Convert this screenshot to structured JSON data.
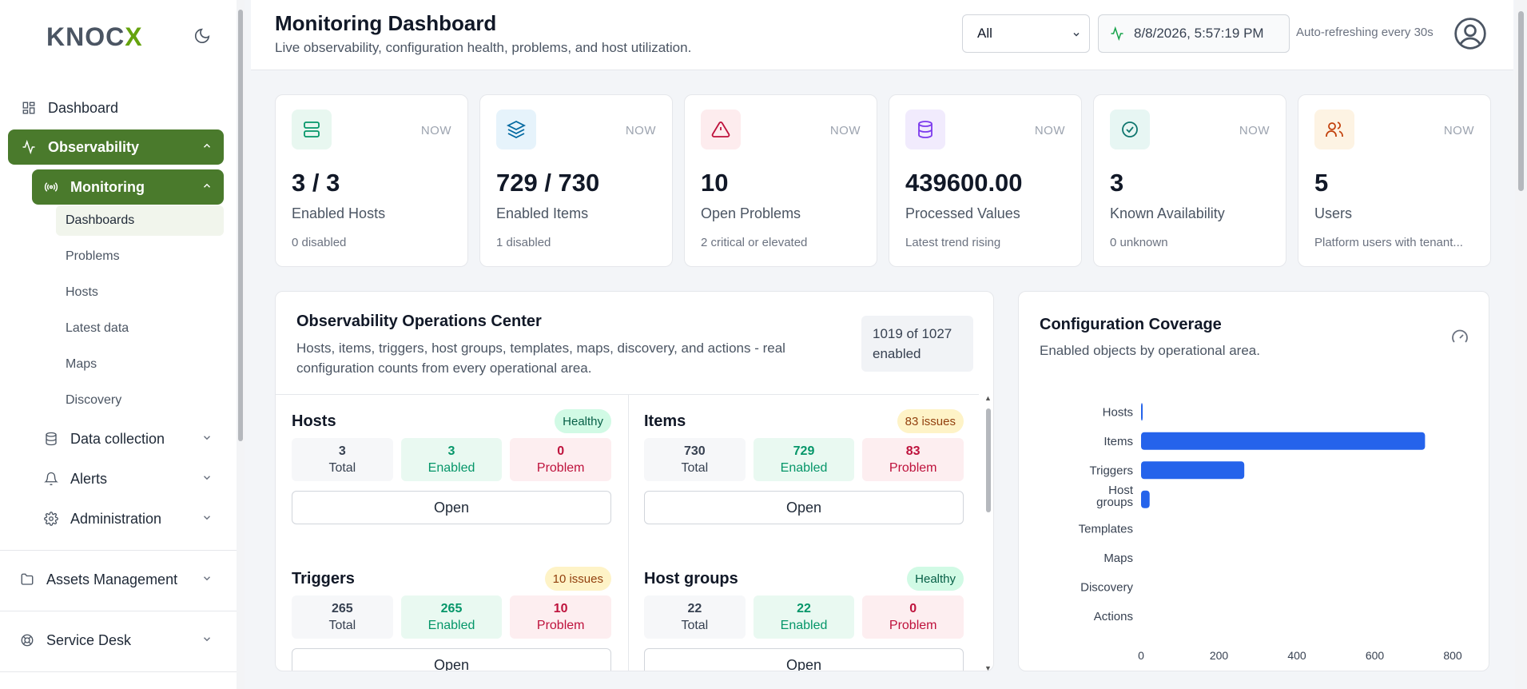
{
  "sidebar": {
    "logo_main": "KNOC",
    "logo_accent": "X",
    "theme_icon": "moon-icon",
    "items": {
      "dashboard": "Dashboard",
      "observability": "Observability",
      "monitoring": "Monitoring",
      "data_collection": "Data collection",
      "alerts": "Alerts",
      "administration": "Administration",
      "assets": "Assets Management",
      "service_desk": "Service Desk"
    },
    "monitoring_sub": [
      "Dashboards",
      "Problems",
      "Hosts",
      "Latest data",
      "Maps",
      "Discovery"
    ]
  },
  "header": {
    "title": "Monitoring Dashboard",
    "subtitle": "Live observability, configuration health, problems, and host utilization.",
    "filter_value": "All",
    "timestamp": "8/8/2026, 5:57:19 PM",
    "auto_refresh": "Auto-refreshing every 30s"
  },
  "stats": [
    {
      "icon": "server-icon",
      "badge": "NOW",
      "value": "3 / 3",
      "label": "Enabled Hosts",
      "note": "0 disabled",
      "color": "#059669",
      "bg": "#e8f7f0"
    },
    {
      "icon": "layers-icon",
      "badge": "NOW",
      "value": "729 / 730",
      "label": "Enabled Items",
      "note": "1 disabled",
      "color": "#0369a1",
      "bg": "#e6f3fb"
    },
    {
      "icon": "alert-triangle-icon",
      "badge": "NOW",
      "value": "10",
      "label": "Open Problems",
      "note": "2 critical or elevated",
      "color": "#be123c",
      "bg": "#fdecee"
    },
    {
      "icon": "database-icon",
      "badge": "NOW",
      "value": "439600.00",
      "label": "Processed Values",
      "note": "Latest trend rising",
      "color": "#7c3aed",
      "bg": "#f1ebfd"
    },
    {
      "icon": "check-circle-icon",
      "badge": "NOW",
      "value": "3",
      "label": "Known Availability",
      "note": "0 unknown",
      "color": "#0f766e",
      "bg": "#e7f6f3"
    },
    {
      "icon": "users-icon",
      "badge": "NOW",
      "value": "5",
      "label": "Users",
      "note": "Platform users with tenant...",
      "color": "#c2410c",
      "bg": "#fdf3e3"
    }
  ],
  "ops": {
    "title": "Observability Operations Center",
    "subtitle": "Hosts, items, triggers, host groups, templates, maps, discovery, and actions - real configuration counts from every operational area.",
    "enabled_summary": "1019 of 1027 enabled",
    "box_labels": {
      "total": "Total",
      "enabled": "Enabled",
      "problem": "Problem"
    },
    "open_label": "Open",
    "sections": [
      {
        "name": "Hosts",
        "tag": "Healthy",
        "total": "3",
        "enabled": "3",
        "problem": "0"
      },
      {
        "name": "Items",
        "tag": "83 issues",
        "total": "730",
        "enabled": "729",
        "problem": "83"
      },
      {
        "name": "Triggers",
        "tag": "10 issues",
        "total": "265",
        "enabled": "265",
        "problem": "10"
      },
      {
        "name": "Host groups",
        "tag": "Healthy",
        "total": "22",
        "enabled": "22",
        "problem": "0"
      }
    ]
  },
  "coverage": {
    "title": "Configuration Coverage",
    "subtitle": "Enabled objects by operational area.",
    "gauge_icon": "gauge-icon"
  },
  "chart_data": {
    "type": "bar",
    "orientation": "horizontal",
    "categories": [
      "Hosts",
      "Items",
      "Triggers",
      "Host groups",
      "Templates",
      "Maps",
      "Discovery",
      "Actions"
    ],
    "values": [
      3,
      729,
      265,
      22,
      0,
      0,
      0,
      0
    ],
    "xlim": [
      0,
      800
    ],
    "xticks": [
      0,
      200,
      400,
      600,
      800
    ],
    "bar_color": "#2563eb",
    "grid": false,
    "legend": "none"
  }
}
